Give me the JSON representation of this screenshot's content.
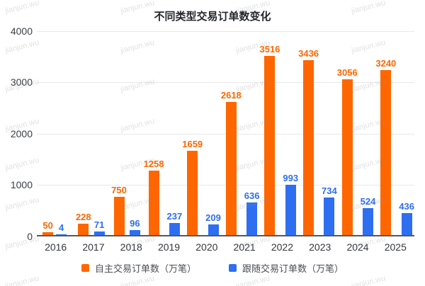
{
  "watermark": {
    "text": "jianjun.wu"
  },
  "chart_data": {
    "type": "bar",
    "title": "不同类型交易订单数变化",
    "categories": [
      "2016",
      "2017",
      "2018",
      "2019",
      "2020",
      "2021",
      "2022",
      "2023",
      "2024",
      "2025"
    ],
    "series": [
      {
        "name": "自主交易订单数（万笔）",
        "color": "#FF6600",
        "values": [
          50,
          228,
          750,
          1258,
          1659,
          2618,
          3516,
          3436,
          3056,
          3240
        ]
      },
      {
        "name": "跟随交易订单数（万笔）",
        "color": "#2E6FF2",
        "values": [
          4,
          71,
          96,
          237,
          209,
          636,
          993,
          734,
          524,
          436
        ]
      }
    ],
    "xlabel": "",
    "ylabel": "",
    "ylim": [
      0,
      4000
    ],
    "yticks": [
      "0",
      "1000",
      "2000",
      "3000",
      "4000"
    ],
    "grid": true,
    "legend_position": "bottom",
    "value_labels": true
  }
}
